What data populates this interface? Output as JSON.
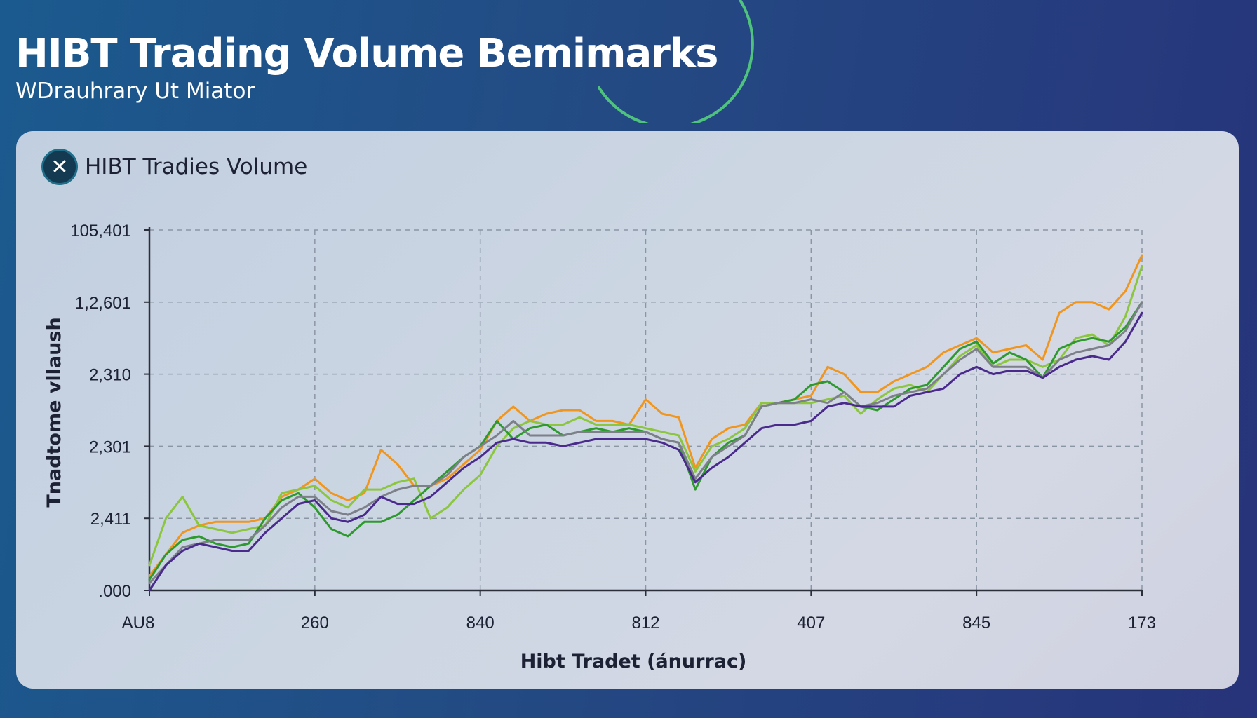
{
  "header": {
    "title": "HIBT Trading Volume Bemimarks",
    "subtitle": "WDrauhrary Ut Miator"
  },
  "card": {
    "title": "HIBT Tradies Volume",
    "icon": "x-circle-icon"
  },
  "colors": {
    "orange": "#f0961e",
    "light_green": "#8cc63f",
    "green": "#2e9a2e",
    "gray": "#7d8088",
    "purple": "#4a2a8c",
    "grid": "#8b96a4",
    "axis": "#2a2f3a",
    "text": "#1c2133"
  },
  "chart_data": {
    "type": "line",
    "xlabel": "Hibt Tradet (ánurrac)",
    "ylabel": "Tnadtome vllaush",
    "x_tick_labels": [
      "AU8",
      "260",
      "840",
      "812",
      "407",
      "845",
      "173"
    ],
    "y_tick_labels": [
      ".000",
      "2,411",
      "2,301",
      "2,310",
      "1,2,601",
      "105,401"
    ],
    "x": [
      0,
      1,
      2,
      3,
      4,
      5,
      6,
      7,
      8,
      9,
      10,
      11,
      12,
      13,
      14,
      15,
      16,
      17,
      18,
      19,
      20,
      21,
      22,
      23,
      24,
      25,
      26,
      27,
      28,
      29,
      30,
      31,
      32,
      33,
      34,
      35,
      36,
      37,
      38,
      39,
      40,
      41,
      42,
      43,
      44,
      45,
      46,
      47,
      48,
      49,
      50,
      51,
      52,
      53,
      54,
      55,
      56,
      57,
      58,
      59,
      60
    ],
    "xlim": [
      0,
      60
    ],
    "ylim": [
      0,
      5
    ],
    "grid": true,
    "series": [
      {
        "color": "#f0961e",
        "values": [
          0.2,
          0.5,
          0.8,
          0.9,
          0.95,
          0.95,
          0.95,
          1.0,
          1.3,
          1.4,
          1.55,
          1.35,
          1.25,
          1.35,
          1.95,
          1.75,
          1.45,
          1.45,
          1.55,
          1.75,
          1.95,
          2.35,
          2.55,
          2.35,
          2.45,
          2.5,
          2.5,
          2.35,
          2.35,
          2.3,
          2.65,
          2.45,
          2.4,
          1.7,
          2.1,
          2.25,
          2.3,
          2.6,
          2.6,
          2.65,
          2.7,
          3.1,
          3.0,
          2.75,
          2.75,
          2.9,
          3.0,
          3.1,
          3.3,
          3.4,
          3.5,
          3.3,
          3.35,
          3.4,
          3.2,
          3.85,
          4.0,
          4.0,
          3.9,
          4.15,
          4.65
        ]
      },
      {
        "color": "#8cc63f",
        "values": [
          0.35,
          1.0,
          1.3,
          0.9,
          0.85,
          0.8,
          0.85,
          0.9,
          1.35,
          1.4,
          1.45,
          1.25,
          1.15,
          1.4,
          1.4,
          1.5,
          1.55,
          1.0,
          1.15,
          1.4,
          1.6,
          2.0,
          2.25,
          2.35,
          2.3,
          2.3,
          2.4,
          2.3,
          2.3,
          2.3,
          2.25,
          2.2,
          2.15,
          1.65,
          2.0,
          2.1,
          2.25,
          2.6,
          2.6,
          2.6,
          2.6,
          2.65,
          2.7,
          2.45,
          2.65,
          2.8,
          2.85,
          2.75,
          3.0,
          3.25,
          3.4,
          3.1,
          3.2,
          3.2,
          3.1,
          3.2,
          3.5,
          3.55,
          3.4,
          3.8,
          4.5
        ]
      },
      {
        "color": "#2e9a2e",
        "values": [
          0.15,
          0.5,
          0.7,
          0.75,
          0.65,
          0.6,
          0.65,
          1.0,
          1.25,
          1.35,
          1.15,
          0.85,
          0.75,
          0.95,
          0.95,
          1.05,
          1.25,
          1.45,
          1.65,
          1.85,
          2.0,
          2.35,
          2.1,
          2.25,
          2.3,
          2.15,
          2.2,
          2.25,
          2.2,
          2.25,
          2.2,
          2.1,
          2.05,
          1.4,
          1.85,
          2.05,
          2.15,
          2.55,
          2.6,
          2.65,
          2.85,
          2.9,
          2.75,
          2.55,
          2.5,
          2.65,
          2.8,
          2.85,
          3.1,
          3.35,
          3.45,
          3.15,
          3.3,
          3.2,
          2.95,
          3.35,
          3.45,
          3.5,
          3.45,
          3.65,
          4.0
        ]
      },
      {
        "color": "#7d8088",
        "values": [
          0.1,
          0.35,
          0.6,
          0.65,
          0.7,
          0.7,
          0.7,
          0.9,
          1.15,
          1.3,
          1.3,
          1.1,
          1.05,
          1.15,
          1.3,
          1.4,
          1.45,
          1.45,
          1.6,
          1.85,
          2.0,
          2.15,
          2.35,
          2.15,
          2.15,
          2.15,
          2.2,
          2.2,
          2.2,
          2.2,
          2.2,
          2.1,
          2.05,
          1.55,
          1.85,
          2.0,
          2.15,
          2.55,
          2.6,
          2.6,
          2.65,
          2.6,
          2.75,
          2.55,
          2.6,
          2.7,
          2.75,
          2.8,
          3.0,
          3.2,
          3.35,
          3.1,
          3.1,
          3.1,
          2.95,
          3.2,
          3.3,
          3.35,
          3.4,
          3.6,
          4.0
        ]
      },
      {
        "color": "#4a2a8c",
        "values": [
          0.0,
          0.35,
          0.55,
          0.65,
          0.6,
          0.55,
          0.55,
          0.8,
          1.0,
          1.2,
          1.25,
          1.0,
          0.95,
          1.05,
          1.3,
          1.2,
          1.2,
          1.3,
          1.5,
          1.7,
          1.85,
          2.05,
          2.1,
          2.05,
          2.05,
          2.0,
          2.05,
          2.1,
          2.1,
          2.1,
          2.1,
          2.05,
          1.95,
          1.5,
          1.7,
          1.85,
          2.05,
          2.25,
          2.3,
          2.3,
          2.35,
          2.55,
          2.6,
          2.55,
          2.55,
          2.55,
          2.7,
          2.75,
          2.8,
          3.0,
          3.1,
          3.0,
          3.05,
          3.05,
          2.95,
          3.1,
          3.2,
          3.25,
          3.2,
          3.45,
          3.85
        ]
      }
    ]
  }
}
